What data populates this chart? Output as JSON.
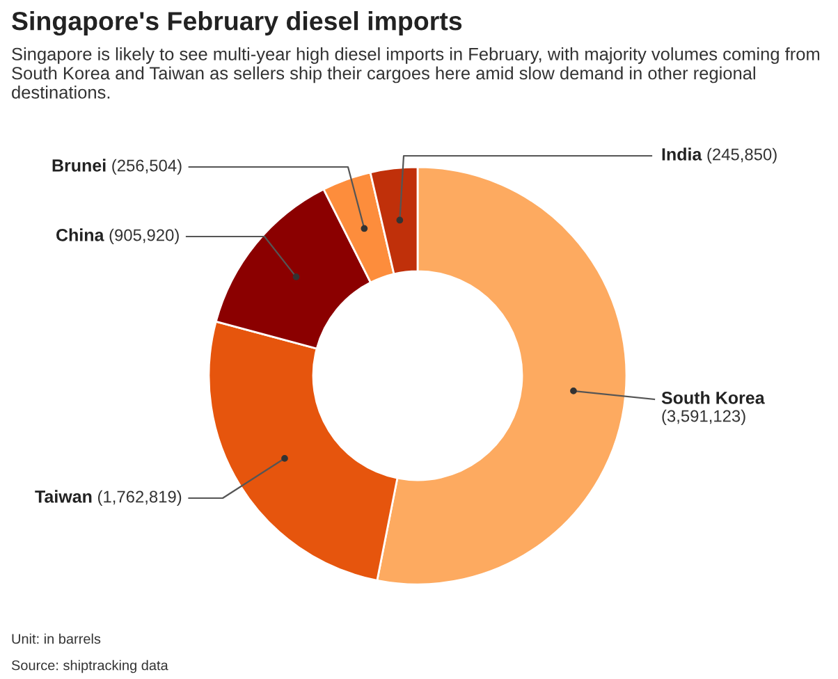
{
  "chart_data": {
    "type": "donut",
    "title": "Singapore's February diesel imports",
    "subtitle": "Singapore is likely to see multi-year high diesel imports in February, with majority volumes coming from South Korea and Taiwan as sellers ship their cargoes here amid slow demand in other regional destinations.",
    "categories": [
      "South Korea",
      "Taiwan",
      "China",
      "Brunei",
      "India"
    ],
    "values": [
      3591123,
      1762819,
      905920,
      256504,
      245850
    ],
    "colors": [
      "#fdaa60",
      "#e6550d",
      "#8b0000",
      "#fd8d3c",
      "#c0300a"
    ],
    "value_labels": [
      "(3,591,123)",
      "(1,762,819)",
      "(905,920)",
      "(256,504)",
      "(245,850)"
    ],
    "annotations": [
      "Unit: in barrels",
      "Source: shiptracking data"
    ]
  }
}
